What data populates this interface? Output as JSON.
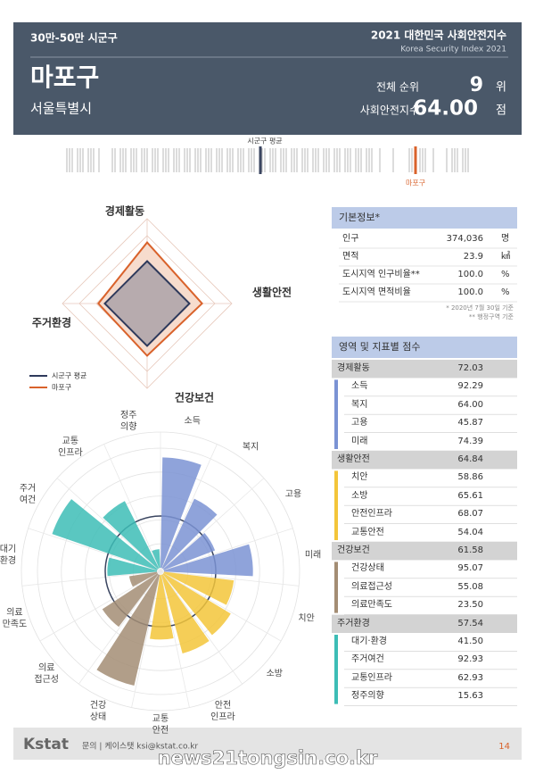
{
  "header": {
    "category": "30만-50만 시군구",
    "title": "2021 대한민국 사회안전지수",
    "subtitle": "Korea Security Index 2021",
    "name": "마포구",
    "region": "서울특별시",
    "rank_label": "전체 순위",
    "rank": "9",
    "rank_unit": "위",
    "index_label": "사회안전지수",
    "index": "64.00",
    "index_unit": "점"
  },
  "distribution": {
    "average_label": "시군구 평균",
    "highlight_label": "마포구"
  },
  "radar": {
    "type": "radar",
    "axes": [
      "경제활동",
      "생활안전",
      "건강보건",
      "주거환경"
    ],
    "rlim": [
      0,
      100
    ],
    "rticks": [
      20,
      40,
      60,
      80,
      100
    ],
    "series": [
      {
        "name": "시군구 평균",
        "color": "#2e3a5c",
        "fill": "#b7abae",
        "values": [
          50,
          50,
          50,
          50
        ]
      },
      {
        "name": "마포구",
        "color": "#d9622b",
        "fill": "#f7dccd",
        "values": [
          72.03,
          64.84,
          61.58,
          57.54
        ]
      }
    ]
  },
  "polar": {
    "type": "polar-bar",
    "categories": [
      "소득",
      "복지",
      "고용",
      "미래",
      "치안",
      "소방",
      "안전\n인프라",
      "교통\n안전",
      "건강\n상태",
      "의료\n접근성",
      "의료\n만족도",
      "대기\n환경",
      "주거\n여건",
      "교통\n인프라",
      "정주\n의향"
    ],
    "values": [
      92.29,
      64.0,
      45.87,
      74.39,
      58.86,
      65.61,
      68.07,
      54.04,
      95.07,
      55.08,
      23.5,
      41.5,
      92.93,
      62.93,
      15.63
    ],
    "colors": [
      "#7b93d4",
      "#7b93d4",
      "#7b93d4",
      "#7b93d4",
      "#f3c53a",
      "#f3c53a",
      "#f3c53a",
      "#f3c53a",
      "#a38d74",
      "#a38d74",
      "#a38d74",
      "#3dbdb6",
      "#3dbdb6",
      "#3dbdb6",
      "#3dbdb6"
    ],
    "rlim": [
      0,
      100
    ],
    "rticks": [
      20,
      40,
      60,
      80,
      100
    ]
  },
  "basic_info": {
    "title": "기본정보*",
    "rows": [
      [
        "인구",
        "374,036",
        "명"
      ],
      [
        "면적",
        "23.9",
        "㎢"
      ],
      [
        "도시지역 인구비율**",
        "100.0",
        "%"
      ],
      [
        "도시지역 면적비율",
        "100.0",
        "%"
      ]
    ],
    "notes": [
      "* 2020년 7월 30일 기준",
      "** 행정구역 기준"
    ]
  },
  "scores": {
    "title": "영역 및 지표별 점수",
    "groups": [
      {
        "name": "경제활동",
        "score": "72.03",
        "color": "#7b93d4",
        "items": [
          [
            "소득",
            "92.29"
          ],
          [
            "복지",
            "64.00"
          ],
          [
            "고용",
            "45.87"
          ],
          [
            "미래",
            "74.39"
          ]
        ]
      },
      {
        "name": "생활안전",
        "score": "64.84",
        "color": "#f3c53a",
        "items": [
          [
            "치안",
            "58.86"
          ],
          [
            "소방",
            "65.61"
          ],
          [
            "안전인프라",
            "68.07"
          ],
          [
            "교통안전",
            "54.04"
          ]
        ]
      },
      {
        "name": "건강보건",
        "score": "61.58",
        "color": "#a38d74",
        "items": [
          [
            "건강상태",
            "95.07"
          ],
          [
            "의료접근성",
            "55.08"
          ],
          [
            "의료만족도",
            "23.50"
          ]
        ]
      },
      {
        "name": "주거환경",
        "score": "57.54",
        "color": "#3dbdb6",
        "items": [
          [
            "대기·환경",
            "41.50"
          ],
          [
            "주거여건",
            "92.93"
          ],
          [
            "교통인프라",
            "62.93"
          ],
          [
            "정주의향",
            "15.63"
          ]
        ]
      }
    ]
  },
  "footer": {
    "logo": "Kstat",
    "contact": "문의 | 케이스탯 ksi@kstat.co.kr",
    "page": "14",
    "watermark": "news21tongsin.co.kr"
  }
}
